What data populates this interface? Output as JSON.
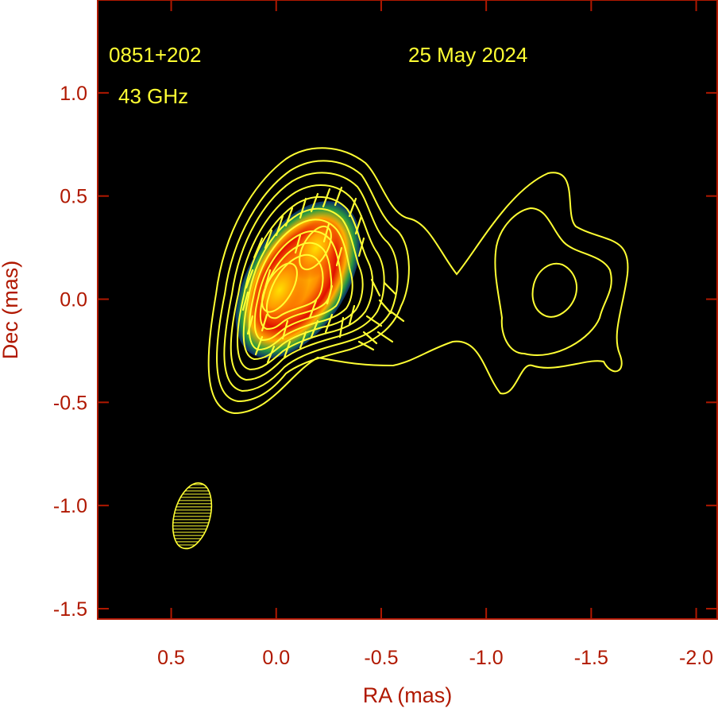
{
  "chart_data": {
    "type": "heatmap",
    "title": "",
    "xlabel": "RA (mas)",
    "ylabel": "Dec (mas)",
    "xlim": [
      0.85,
      -2.1
    ],
    "ylim": [
      -1.55,
      1.45
    ],
    "x_ticks": [
      {
        "value": 0.5,
        "label": "0.5"
      },
      {
        "value": 0.0,
        "label": "0.0"
      },
      {
        "value": -0.5,
        "label": "-0.5"
      },
      {
        "value": -1.0,
        "label": "-1.0"
      },
      {
        "value": -1.5,
        "label": "-1.5"
      },
      {
        "value": -2.0,
        "label": "-2.0"
      }
    ],
    "y_ticks": [
      {
        "value": 1.0,
        "label": "1.0"
      },
      {
        "value": 0.5,
        "label": "0.5"
      },
      {
        "value": 0.0,
        "label": "0.0"
      },
      {
        "value": -0.5,
        "label": "-0.5"
      },
      {
        "value": -1.0,
        "label": "-1.0"
      },
      {
        "value": -1.5,
        "label": "-1.5"
      }
    ],
    "annotations": {
      "source": "0851+202",
      "date": "25 May 2024",
      "frequency": "43 GHz"
    },
    "components": [
      {
        "ra": 0.0,
        "dec": 0.05
      },
      {
        "ra": -0.2,
        "dec": 0.25
      }
    ],
    "beam": {
      "ra": 0.4,
      "dec": -1.05,
      "major": 0.32,
      "minor": 0.17
    },
    "colors": {
      "background": "#000000",
      "axis": "#b01800",
      "contour": "#ffff33",
      "annotation": "#ffff33"
    },
    "grid": false,
    "legend": "none"
  }
}
